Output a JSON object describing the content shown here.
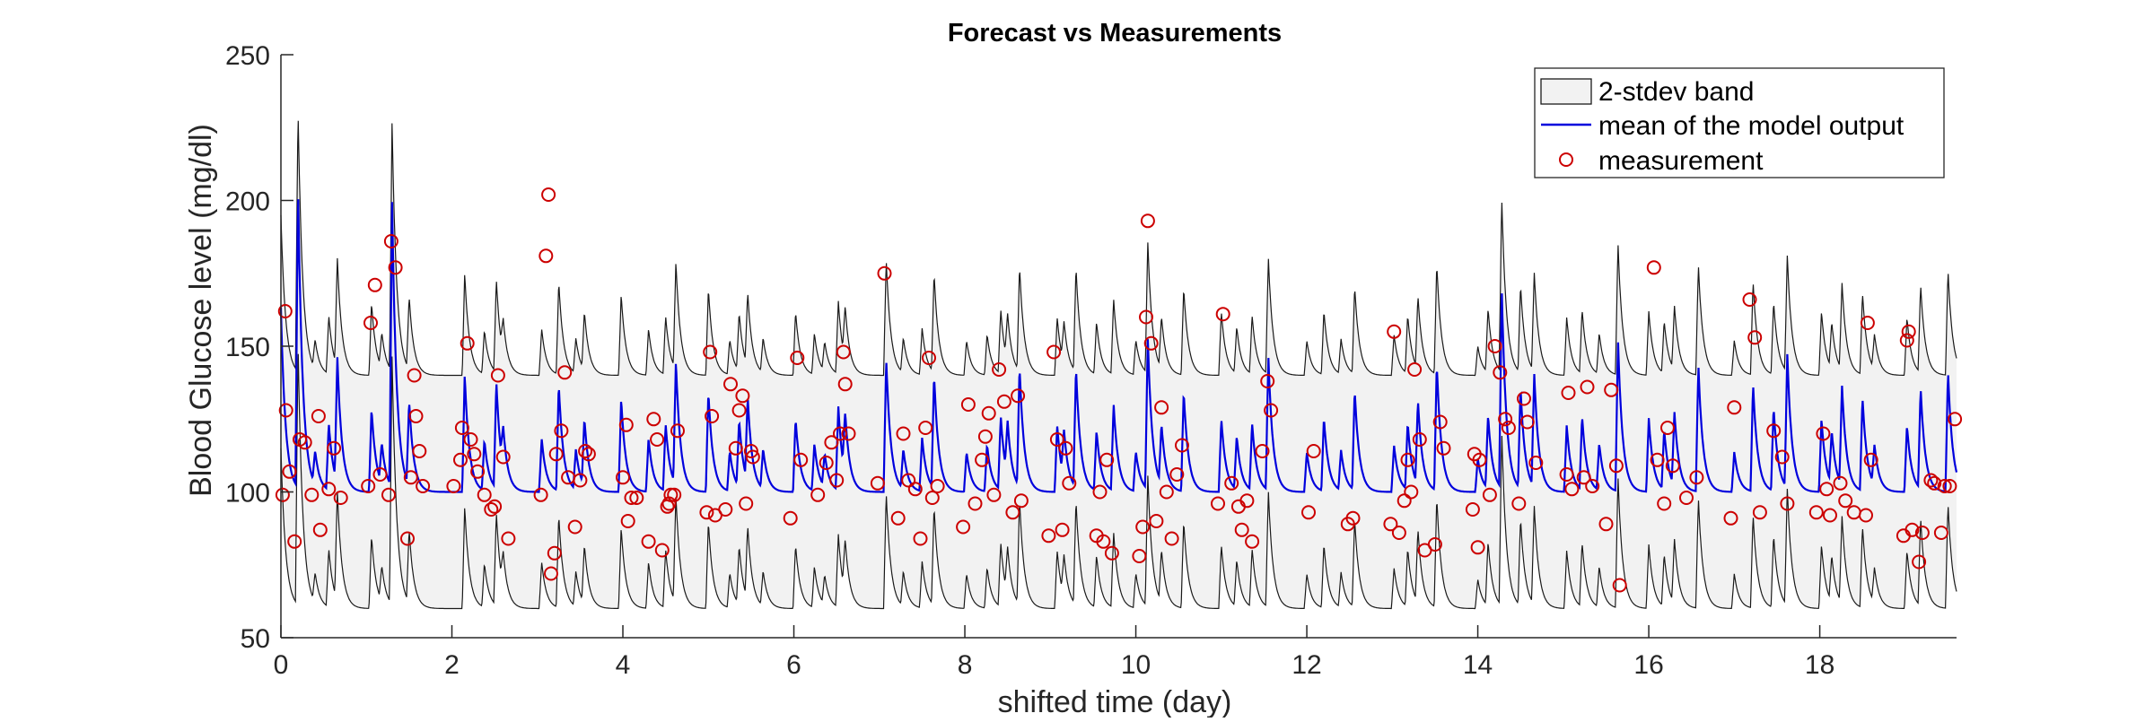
{
  "chart_data": {
    "type": "line",
    "title": "Forecast vs Measurements",
    "xlabel": "shifted time (day)",
    "ylabel": "Blood Glucose level (mg/dl)",
    "xlim": [
      0,
      19.6
    ],
    "ylim": [
      50,
      250
    ],
    "xticks": [
      0,
      2,
      4,
      6,
      8,
      10,
      12,
      14,
      16,
      18
    ],
    "yticks": [
      50,
      100,
      150,
      200,
      250
    ],
    "xtick_labels": [
      "0",
      "2",
      "4",
      "6",
      "8",
      "10",
      "12",
      "14",
      "16",
      "18"
    ],
    "ytick_labels": [
      "50",
      "100",
      "150",
      "200",
      "250"
    ],
    "grid": false,
    "legend_position": "top-right",
    "legend": [
      {
        "label": "2-stdev band",
        "kind": "band"
      },
      {
        "label": "mean of the model output",
        "kind": "line"
      },
      {
        "label": "measurement",
        "kind": "marker"
      }
    ],
    "baselines": {
      "upper": 140,
      "mean": 100,
      "lower": 60
    },
    "peaks": [
      {
        "t": 0.0,
        "h": 55
      },
      {
        "t": 0.2,
        "h": 90
      },
      {
        "t": 0.4,
        "h": 10
      },
      {
        "t": 0.56,
        "h": 20
      },
      {
        "t": 0.66,
        "h": 37
      },
      {
        "t": 1.06,
        "h": 25
      },
      {
        "t": 1.18,
        "h": 12
      },
      {
        "t": 1.3,
        "h": 85
      },
      {
        "t": 1.5,
        "h": 25
      },
      {
        "t": 2.15,
        "h": 35
      },
      {
        "t": 2.38,
        "h": 15
      },
      {
        "t": 2.52,
        "h": 32
      },
      {
        "t": 2.6,
        "h": 12
      },
      {
        "t": 3.05,
        "h": 16
      },
      {
        "t": 3.25,
        "h": 32
      },
      {
        "t": 3.45,
        "h": 12
      },
      {
        "t": 3.55,
        "h": 20
      },
      {
        "t": 3.98,
        "h": 28
      },
      {
        "t": 4.3,
        "h": 16
      },
      {
        "t": 4.5,
        "h": 20
      },
      {
        "t": 4.62,
        "h": 37
      },
      {
        "t": 5.0,
        "h": 30
      },
      {
        "t": 5.25,
        "h": 12
      },
      {
        "t": 5.36,
        "h": 20
      },
      {
        "t": 5.46,
        "h": 25
      },
      {
        "t": 5.64,
        "h": 12
      },
      {
        "t": 6.02,
        "h": 22
      },
      {
        "t": 6.24,
        "h": 14
      },
      {
        "t": 6.36,
        "h": 10
      },
      {
        "t": 6.52,
        "h": 25
      },
      {
        "t": 6.6,
        "h": 18
      },
      {
        "t": 7.08,
        "h": 40
      },
      {
        "t": 7.28,
        "h": 12
      },
      {
        "t": 7.5,
        "h": 16
      },
      {
        "t": 7.64,
        "h": 34
      },
      {
        "t": 8.02,
        "h": 12
      },
      {
        "t": 8.26,
        "h": 14
      },
      {
        "t": 8.42,
        "h": 22
      },
      {
        "t": 8.5,
        "h": 16
      },
      {
        "t": 8.64,
        "h": 36
      },
      {
        "t": 9.08,
        "h": 20
      },
      {
        "t": 9.16,
        "h": 14
      },
      {
        "t": 9.3,
        "h": 36
      },
      {
        "t": 9.54,
        "h": 18
      },
      {
        "t": 9.74,
        "h": 26
      },
      {
        "t": 10.0,
        "h": 12
      },
      {
        "t": 10.14,
        "h": 45
      },
      {
        "t": 10.3,
        "h": 18
      },
      {
        "t": 10.56,
        "h": 30
      },
      {
        "t": 11.0,
        "h": 22
      },
      {
        "t": 11.18,
        "h": 16
      },
      {
        "t": 11.36,
        "h": 20
      },
      {
        "t": 11.55,
        "h": 40
      },
      {
        "t": 12.0,
        "h": 12
      },
      {
        "t": 12.2,
        "h": 22
      },
      {
        "t": 12.4,
        "h": 12
      },
      {
        "t": 12.56,
        "h": 30
      },
      {
        "t": 13.02,
        "h": 14
      },
      {
        "t": 13.18,
        "h": 20
      },
      {
        "t": 13.3,
        "h": 25
      },
      {
        "t": 13.52,
        "h": 38
      },
      {
        "t": 14.0,
        "h": 10
      },
      {
        "t": 14.12,
        "h": 22
      },
      {
        "t": 14.28,
        "h": 60
      },
      {
        "t": 14.5,
        "h": 30
      },
      {
        "t": 14.66,
        "h": 34
      },
      {
        "t": 15.04,
        "h": 20
      },
      {
        "t": 15.22,
        "h": 22
      },
      {
        "t": 15.42,
        "h": 14
      },
      {
        "t": 15.64,
        "h": 45
      },
      {
        "t": 16.0,
        "h": 22
      },
      {
        "t": 16.18,
        "h": 18
      },
      {
        "t": 16.3,
        "h": 22
      },
      {
        "t": 16.58,
        "h": 38
      },
      {
        "t": 17.0,
        "h": 12
      },
      {
        "t": 17.22,
        "h": 32
      },
      {
        "t": 17.46,
        "h": 25
      },
      {
        "t": 17.62,
        "h": 40
      },
      {
        "t": 18.02,
        "h": 22
      },
      {
        "t": 18.14,
        "h": 16
      },
      {
        "t": 18.26,
        "h": 30
      },
      {
        "t": 18.5,
        "h": 28
      },
      {
        "t": 18.64,
        "h": 12
      },
      {
        "t": 19.02,
        "h": 20
      },
      {
        "t": 19.18,
        "h": 30
      },
      {
        "t": 19.5,
        "h": 36
      }
    ],
    "measurements": [
      [
        0.02,
        99
      ],
      [
        0.05,
        162
      ],
      [
        0.06,
        128
      ],
      [
        0.1,
        107
      ],
      [
        0.16,
        83
      ],
      [
        0.22,
        118
      ],
      [
        0.28,
        117
      ],
      [
        0.36,
        99
      ],
      [
        0.44,
        126
      ],
      [
        0.46,
        87
      ],
      [
        0.56,
        101
      ],
      [
        0.62,
        115
      ],
      [
        0.7,
        98
      ],
      [
        1.02,
        102
      ],
      [
        1.05,
        158
      ],
      [
        1.1,
        171
      ],
      [
        1.16,
        106
      ],
      [
        1.26,
        99
      ],
      [
        1.29,
        186
      ],
      [
        1.34,
        177
      ],
      [
        1.48,
        84
      ],
      [
        1.52,
        105
      ],
      [
        1.56,
        140
      ],
      [
        1.58,
        126
      ],
      [
        1.62,
        114
      ],
      [
        1.66,
        102
      ],
      [
        2.02,
        102
      ],
      [
        2.1,
        111
      ],
      [
        2.12,
        122
      ],
      [
        2.18,
        151
      ],
      [
        2.22,
        118
      ],
      [
        2.26,
        113
      ],
      [
        2.3,
        107
      ],
      [
        2.38,
        99
      ],
      [
        2.46,
        94
      ],
      [
        2.5,
        95
      ],
      [
        2.54,
        140
      ],
      [
        2.6,
        112
      ],
      [
        2.66,
        84
      ],
      [
        3.04,
        99
      ],
      [
        3.1,
        181
      ],
      [
        3.13,
        202
      ],
      [
        3.16,
        72
      ],
      [
        3.2,
        79
      ],
      [
        3.22,
        113
      ],
      [
        3.28,
        121
      ],
      [
        3.32,
        141
      ],
      [
        3.36,
        105
      ],
      [
        3.44,
        88
      ],
      [
        3.5,
        104
      ],
      [
        3.56,
        114
      ],
      [
        3.6,
        113
      ],
      [
        4.0,
        105
      ],
      [
        4.04,
        123
      ],
      [
        4.06,
        90
      ],
      [
        4.1,
        98
      ],
      [
        4.16,
        98
      ],
      [
        4.3,
        83
      ],
      [
        4.36,
        125
      ],
      [
        4.4,
        118
      ],
      [
        4.46,
        80
      ],
      [
        4.52,
        95
      ],
      [
        4.54,
        96
      ],
      [
        4.56,
        99
      ],
      [
        4.6,
        99
      ],
      [
        4.64,
        121
      ],
      [
        4.98,
        93
      ],
      [
        5.02,
        148
      ],
      [
        5.04,
        126
      ],
      [
        5.08,
        92
      ],
      [
        5.2,
        94
      ],
      [
        5.26,
        137
      ],
      [
        5.32,
        115
      ],
      [
        5.36,
        128
      ],
      [
        5.4,
        133
      ],
      [
        5.44,
        96
      ],
      [
        5.5,
        114
      ],
      [
        5.52,
        112
      ],
      [
        5.96,
        91
      ],
      [
        6.04,
        146
      ],
      [
        6.08,
        111
      ],
      [
        6.28,
        99
      ],
      [
        6.38,
        110
      ],
      [
        6.44,
        117
      ],
      [
        6.5,
        104
      ],
      [
        6.54,
        120
      ],
      [
        6.58,
        148
      ],
      [
        6.6,
        137
      ],
      [
        6.64,
        120
      ],
      [
        6.98,
        103
      ],
      [
        7.06,
        175
      ],
      [
        7.22,
        91
      ],
      [
        7.28,
        120
      ],
      [
        7.34,
        104
      ],
      [
        7.42,
        101
      ],
      [
        7.48,
        84
      ],
      [
        7.54,
        122
      ],
      [
        7.58,
        146
      ],
      [
        7.62,
        98
      ],
      [
        7.68,
        102
      ],
      [
        7.98,
        88
      ],
      [
        8.04,
        130
      ],
      [
        8.12,
        96
      ],
      [
        8.2,
        111
      ],
      [
        8.24,
        119
      ],
      [
        8.28,
        127
      ],
      [
        8.34,
        99
      ],
      [
        8.4,
        142
      ],
      [
        8.46,
        131
      ],
      [
        8.56,
        93
      ],
      [
        8.62,
        133
      ],
      [
        8.66,
        97
      ],
      [
        8.98,
        85
      ],
      [
        9.04,
        148
      ],
      [
        9.08,
        118
      ],
      [
        9.14,
        87
      ],
      [
        9.18,
        115
      ],
      [
        9.22,
        103
      ],
      [
        9.54,
        85
      ],
      [
        9.58,
        100
      ],
      [
        9.62,
        83
      ],
      [
        9.66,
        111
      ],
      [
        9.72,
        79
      ],
      [
        10.04,
        78
      ],
      [
        10.08,
        88
      ],
      [
        10.12,
        160
      ],
      [
        10.14,
        193
      ],
      [
        10.18,
        151
      ],
      [
        10.24,
        90
      ],
      [
        10.3,
        129
      ],
      [
        10.36,
        100
      ],
      [
        10.42,
        84
      ],
      [
        10.48,
        106
      ],
      [
        10.54,
        116
      ],
      [
        10.96,
        96
      ],
      [
        11.02,
        161
      ],
      [
        11.12,
        103
      ],
      [
        11.2,
        95
      ],
      [
        11.24,
        87
      ],
      [
        11.3,
        97
      ],
      [
        11.36,
        83
      ],
      [
        11.48,
        114
      ],
      [
        11.54,
        138
      ],
      [
        11.58,
        128
      ],
      [
        12.02,
        93
      ],
      [
        12.08,
        114
      ],
      [
        12.48,
        89
      ],
      [
        12.54,
        91
      ],
      [
        12.98,
        89
      ],
      [
        13.02,
        155
      ],
      [
        13.08,
        86
      ],
      [
        13.14,
        97
      ],
      [
        13.18,
        111
      ],
      [
        13.22,
        100
      ],
      [
        13.26,
        142
      ],
      [
        13.32,
        118
      ],
      [
        13.38,
        80
      ],
      [
        13.5,
        82
      ],
      [
        13.56,
        124
      ],
      [
        13.6,
        115
      ],
      [
        13.94,
        94
      ],
      [
        13.96,
        113
      ],
      [
        14.0,
        81
      ],
      [
        14.02,
        111
      ],
      [
        14.14,
        99
      ],
      [
        14.2,
        150
      ],
      [
        14.26,
        141
      ],
      [
        14.32,
        125
      ],
      [
        14.36,
        122
      ],
      [
        14.48,
        96
      ],
      [
        14.54,
        132
      ],
      [
        14.58,
        124
      ],
      [
        14.68,
        110
      ],
      [
        15.04,
        106
      ],
      [
        15.06,
        134
      ],
      [
        15.1,
        101
      ],
      [
        15.24,
        105
      ],
      [
        15.28,
        136
      ],
      [
        15.34,
        102
      ],
      [
        15.5,
        89
      ],
      [
        15.56,
        135
      ],
      [
        15.62,
        109
      ],
      [
        15.66,
        68
      ],
      [
        16.06,
        177
      ],
      [
        16.1,
        111
      ],
      [
        16.18,
        96
      ],
      [
        16.22,
        122
      ],
      [
        16.28,
        109
      ],
      [
        16.44,
        98
      ],
      [
        16.56,
        105
      ],
      [
        16.96,
        91
      ],
      [
        17.0,
        129
      ],
      [
        17.18,
        166
      ],
      [
        17.24,
        153
      ],
      [
        17.3,
        93
      ],
      [
        17.46,
        121
      ],
      [
        17.56,
        112
      ],
      [
        17.62,
        96
      ],
      [
        17.96,
        93
      ],
      [
        18.04,
        120
      ],
      [
        18.08,
        101
      ],
      [
        18.12,
        92
      ],
      [
        18.24,
        103
      ],
      [
        18.3,
        97
      ],
      [
        18.4,
        93
      ],
      [
        18.54,
        92
      ],
      [
        18.56,
        158
      ],
      [
        18.6,
        111
      ],
      [
        18.98,
        85
      ],
      [
        19.02,
        152
      ],
      [
        19.04,
        155
      ],
      [
        19.08,
        87
      ],
      [
        19.16,
        76
      ],
      [
        19.2,
        86
      ],
      [
        19.3,
        104
      ],
      [
        19.34,
        103
      ],
      [
        19.42,
        86
      ],
      [
        19.46,
        102
      ],
      [
        19.52,
        102
      ],
      [
        19.58,
        125
      ]
    ],
    "colors": {
      "band_fill": "#f2f2f2",
      "band_edge": "#1a1a1a",
      "mean_line": "#0000dd",
      "marker": "#cc0000",
      "axis": "#262626"
    }
  }
}
